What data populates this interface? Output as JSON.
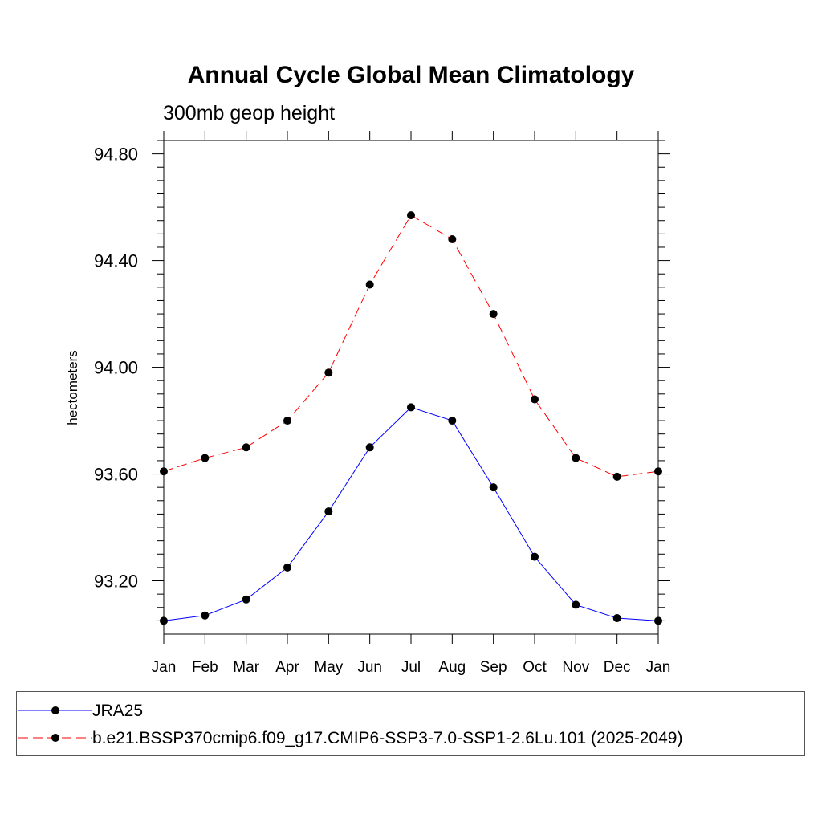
{
  "chart_data": {
    "type": "line",
    "title": "Annual Cycle Global Mean Climatology",
    "subtitle": "300mb geop height",
    "xlabel": "",
    "ylabel": "hectometers",
    "categories": [
      "Jan",
      "Feb",
      "Mar",
      "Apr",
      "May",
      "Jun",
      "Jul",
      "Aug",
      "Sep",
      "Oct",
      "Nov",
      "Dec",
      "Jan"
    ],
    "ylim": [
      93.0,
      94.85
    ],
    "yticks": [
      93.2,
      93.6,
      94.0,
      94.4,
      94.8
    ],
    "ytick_labels": [
      "93.20",
      "93.60",
      "94.00",
      "94.40",
      "94.80"
    ],
    "legend_position": "bottom",
    "series": [
      {
        "name": "JRA25",
        "color": "#0000ff",
        "dash": "solid",
        "values": [
          93.05,
          93.07,
          93.13,
          93.25,
          93.46,
          93.7,
          93.85,
          93.8,
          93.55,
          93.29,
          93.11,
          93.06,
          93.05
        ]
      },
      {
        "name": "b.e21.BSSP370cmip6.f09_g17.CMIP6-SSP3-7.0-SSP1-2.6Lu.101 (2025-2049)",
        "color": "#ff0000",
        "dash": "dashed",
        "values": [
          93.61,
          93.66,
          93.7,
          93.8,
          93.98,
          94.31,
          94.57,
          94.48,
          94.2,
          93.88,
          93.66,
          93.59,
          93.61
        ]
      }
    ]
  }
}
